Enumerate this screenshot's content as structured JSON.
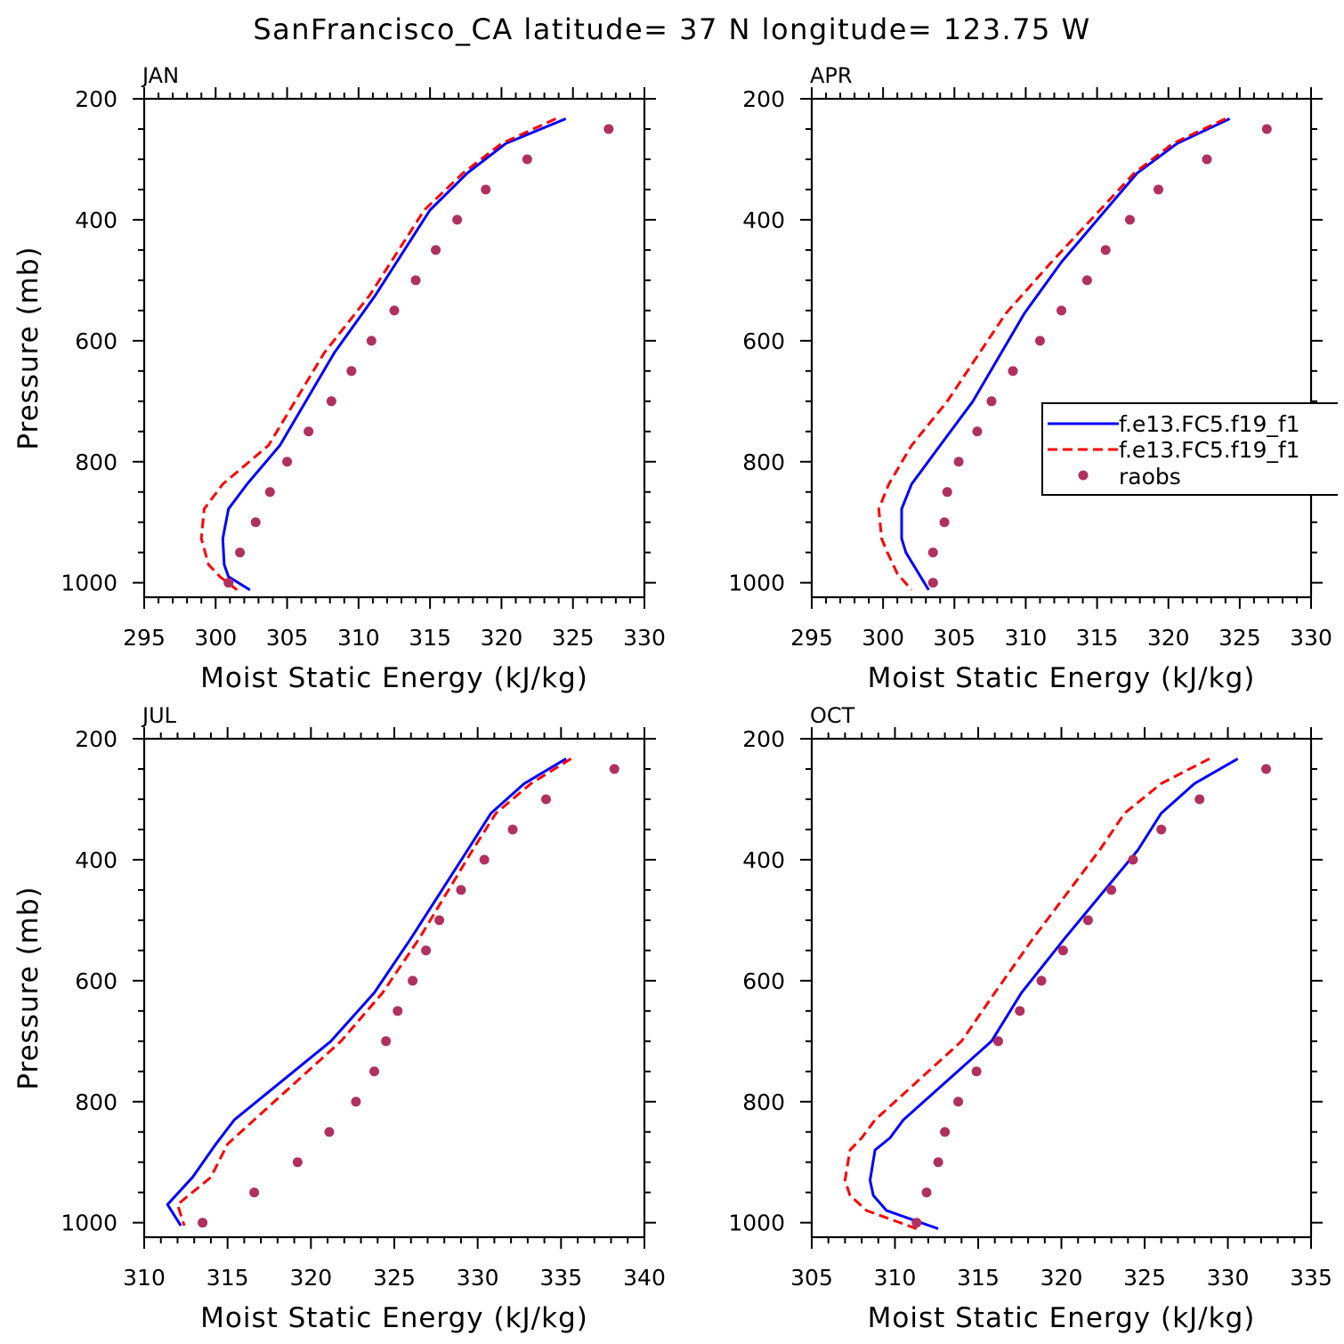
{
  "figure_title": "SanFrancisco_CA  latitude= 37 N longitude= 123.75 W",
  "colors": {
    "model1": "#0000ff",
    "model2": "#ff0000",
    "raobs": "#b03060"
  },
  "legend": {
    "entries": [
      "f.e13.FC5.f19_f1",
      "f.e13.FC5.f19_f1",
      "raobs"
    ]
  },
  "chart_data": [
    {
      "type": "line",
      "panel": "JAN",
      "xlabel": "Moist Static Energy (kJ/kg)",
      "ylabel": "Pressure (mb)",
      "xlim": [
        295,
        330
      ],
      "ylim": [
        200,
        1000
      ],
      "x_ticks": [
        "295",
        "300",
        "305",
        "310",
        "315",
        "320",
        "325",
        "330"
      ],
      "y_ticks": [
        "200",
        "400",
        "600",
        "800",
        "1000"
      ],
      "y_tick_values": [
        200,
        400,
        600,
        800,
        1000
      ],
      "series": [
        {
          "kind": "solid",
          "color_key": "model1",
          "x": [
            324.5,
            320.3,
            317.6,
            315.0,
            311.2,
            308.3,
            304.5,
            302.2,
            300.9,
            300.5,
            300.6,
            300.9,
            302.4
          ],
          "y": [
            233,
            274,
            323,
            384,
            524,
            620,
            773,
            837,
            878,
            927,
            970,
            990,
            1012
          ]
        },
        {
          "kind": "dashed",
          "color_key": "model2",
          "x": [
            323.8,
            320.0,
            317.3,
            314.6,
            310.8,
            307.6,
            303.7,
            300.5,
            299.2,
            299.0,
            299.5,
            300.3,
            301.5
          ],
          "y": [
            233,
            274,
            323,
            384,
            524,
            620,
            773,
            837,
            878,
            927,
            970,
            990,
            1012
          ]
        },
        {
          "kind": "points",
          "color_key": "raobs",
          "x": [
            327.5,
            321.8,
            318.9,
            316.9,
            315.4,
            314.0,
            312.5,
            310.9,
            309.5,
            308.1,
            306.5,
            305.0,
            303.8,
            302.8,
            301.7,
            300.9
          ],
          "y": [
            250,
            300,
            350,
            400,
            450,
            500,
            550,
            600,
            650,
            700,
            750,
            800,
            850,
            900,
            950,
            1000
          ]
        }
      ]
    },
    {
      "type": "line",
      "panel": "APR",
      "xlabel": "Moist Static Energy (kJ/kg)",
      "ylabel": "",
      "xlim": [
        295,
        330
      ],
      "ylim": [
        200,
        1000
      ],
      "x_ticks": [
        "295",
        "300",
        "305",
        "310",
        "315",
        "320",
        "325",
        "330"
      ],
      "y_ticks": [
        "200",
        "400",
        "600",
        "800",
        "1000"
      ],
      "y_tick_values": [
        200,
        400,
        600,
        800,
        1000
      ],
      "series": [
        {
          "kind": "solid",
          "color_key": "model1",
          "x": [
            324.3,
            320.6,
            317.8,
            315.6,
            312.5,
            309.9,
            306.3,
            304.0,
            302.0,
            301.3,
            301.3,
            301.6,
            302.5,
            303.2
          ],
          "y": [
            233,
            274,
            323,
            384,
            470,
            555,
            700,
            773,
            837,
            878,
            927,
            950,
            985,
            1012
          ]
        },
        {
          "kind": "dashed",
          "color_key": "model2",
          "x": [
            324.0,
            320.3,
            317.6,
            315.2,
            311.8,
            308.6,
            304.5,
            302.0,
            300.4,
            299.7,
            299.9,
            300.3,
            301.0,
            302.0
          ],
          "y": [
            233,
            274,
            323,
            384,
            470,
            555,
            700,
            773,
            837,
            878,
            927,
            950,
            985,
            1012
          ]
        },
        {
          "kind": "points",
          "color_key": "raobs",
          "x": [
            326.9,
            322.7,
            319.3,
            317.3,
            315.6,
            314.3,
            312.5,
            311.0,
            309.1,
            307.6,
            306.6,
            305.3,
            304.5,
            304.3,
            303.5,
            303.5
          ],
          "y": [
            250,
            300,
            350,
            400,
            450,
            500,
            550,
            600,
            650,
            700,
            750,
            800,
            850,
            900,
            950,
            1000
          ]
        }
      ]
    },
    {
      "type": "line",
      "panel": "JUL",
      "xlabel": "Moist Static Energy (kJ/kg)",
      "ylabel": "Pressure (mb)",
      "xlim": [
        310,
        340
      ],
      "ylim": [
        200,
        1000
      ],
      "x_ticks": [
        "310",
        "315",
        "320",
        "325",
        "330",
        "335",
        "340"
      ],
      "y_ticks": [
        "200",
        "400",
        "600",
        "800",
        "1000"
      ],
      "y_tick_values": [
        200,
        400,
        600,
        800,
        1000
      ],
      "series": [
        {
          "kind": "solid",
          "color_key": "model1",
          "x": [
            335.3,
            332.8,
            330.8,
            329.4,
            326.0,
            323.8,
            321.2,
            315.4,
            314.3,
            312.9,
            311.4,
            312.2
          ],
          "y": [
            233,
            274,
            323,
            384,
            530,
            620,
            700,
            830,
            870,
            925,
            970,
            1005
          ]
        },
        {
          "kind": "dashed",
          "color_key": "model2",
          "x": [
            335.6,
            333.2,
            331.1,
            329.7,
            326.5,
            324.3,
            321.8,
            316.6,
            315.0,
            314.0,
            312.0,
            312.4
          ],
          "y": [
            233,
            274,
            323,
            384,
            530,
            620,
            700,
            830,
            870,
            925,
            970,
            1005
          ]
        },
        {
          "kind": "points",
          "color_key": "raobs",
          "x": [
            338.2,
            334.1,
            332.1,
            330.4,
            329.0,
            327.7,
            326.9,
            326.1,
            325.2,
            324.5,
            323.8,
            322.7,
            321.1,
            319.2,
            316.6,
            313.5
          ],
          "y": [
            250,
            300,
            350,
            400,
            450,
            500,
            550,
            600,
            650,
            700,
            750,
            800,
            850,
            900,
            950,
            1000
          ]
        }
      ]
    },
    {
      "type": "line",
      "panel": "OCT",
      "xlabel": "Moist Static Energy (kJ/kg)",
      "ylabel": "",
      "xlim": [
        305,
        335
      ],
      "ylim": [
        200,
        1000
      ],
      "x_ticks": [
        "305",
        "310",
        "315",
        "320",
        "325",
        "330",
        "335"
      ],
      "y_ticks": [
        "200",
        "400",
        "600",
        "800",
        "1000"
      ],
      "y_tick_values": [
        200,
        400,
        600,
        800,
        1000
      ],
      "series": [
        {
          "kind": "solid",
          "color_key": "model1",
          "x": [
            330.6,
            328.0,
            326.0,
            324.6,
            320.2,
            317.6,
            315.8,
            310.5,
            309.7,
            308.8,
            308.5,
            308.7,
            309.5,
            312.6
          ],
          "y": [
            233,
            274,
            323,
            384,
            530,
            620,
            700,
            830,
            860,
            880,
            930,
            955,
            980,
            1010
          ]
        },
        {
          "kind": "dashed",
          "color_key": "model2",
          "x": [
            328.9,
            326.0,
            323.8,
            322.3,
            318.3,
            316.0,
            314.0,
            308.8,
            308.0,
            307.3,
            307.0,
            307.3,
            308.3,
            311.3
          ],
          "y": [
            233,
            274,
            323,
            384,
            530,
            620,
            700,
            830,
            860,
            880,
            930,
            955,
            980,
            1010
          ]
        },
        {
          "kind": "points",
          "color_key": "raobs",
          "x": [
            332.3,
            328.3,
            326.0,
            324.3,
            323.0,
            321.6,
            320.1,
            318.8,
            317.5,
            316.2,
            314.9,
            313.8,
            313.0,
            312.6,
            311.9,
            311.3
          ],
          "y": [
            250,
            300,
            350,
            400,
            450,
            500,
            550,
            600,
            650,
            700,
            750,
            800,
            850,
            900,
            950,
            1000
          ]
        }
      ]
    }
  ]
}
